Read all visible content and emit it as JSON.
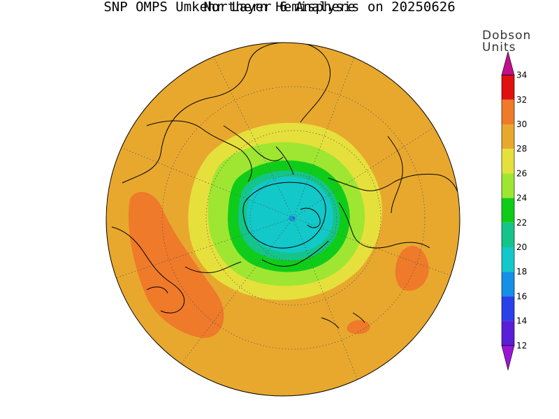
{
  "title": "SNP OMPS Umkehr Layer 6 Analysis on 20250626",
  "subtitle": "Northern Hemisphere",
  "colorbar": {
    "units_line1": "Dobson",
    "units_line2": "Units",
    "ticks": [
      "34",
      "32",
      "30",
      "28",
      "26",
      "24",
      "22",
      "20",
      "18",
      "16",
      "14",
      "12"
    ],
    "colors": [
      "#c0108a",
      "#e01010",
      "#ee7a2a",
      "#e8a82e",
      "#e6e03c",
      "#9ee632",
      "#10cc1a",
      "#14c48a",
      "#12c8c8",
      "#1490e6",
      "#2a40e8",
      "#5a1ed8",
      "#9a16d6"
    ]
  },
  "map_colors": {
    "background": "#e8a82e",
    "band_26_28": "#e6e03c",
    "band_24_26": "#9ee632",
    "band_22_24": "#10cc1a",
    "band_20_22": "#14c48a",
    "band_18_20": "#12c8c8",
    "band_16_18": "#1490e6",
    "band_30_32": "#ee7a2a"
  }
}
